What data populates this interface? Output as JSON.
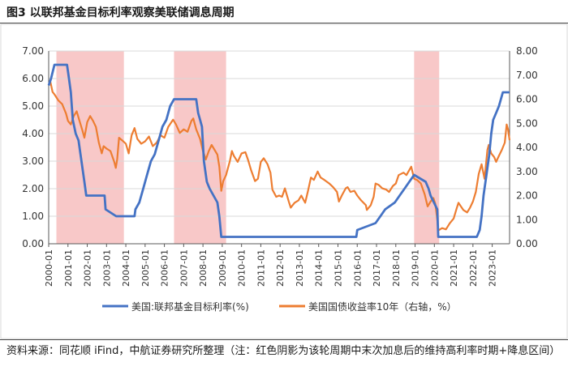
{
  "figure_title": "图3  以联邦基金目标利率观察美联储调息周期",
  "source_note": "资料来源：同花顺 iFind，中航证券研究所整理（注：红色阴影为该轮周期中末次加息后的维持高利率时期+降息区间）",
  "colors": {
    "fed": "#4472c4",
    "yield": "#ed7d31",
    "shade": "#f8c8c8",
    "axis": "#595959",
    "grid": "#d9d9d9"
  },
  "chart_data": {
    "type": "line",
    "x_range": [
      2000.0,
      2023.9
    ],
    "categories": [
      "2000-01",
      "2001-01",
      "2002-01",
      "2003-01",
      "2004-01",
      "2005-01",
      "2006-01",
      "2007-01",
      "2008-01",
      "2009-01",
      "2010-01",
      "2011-01",
      "2012-01",
      "2013-01",
      "2014-01",
      "2015-01",
      "2016-01",
      "2017-01",
      "2018-01",
      "2019-01",
      "2020-01",
      "2021-01",
      "2022-01",
      "2023-01"
    ],
    "y_left": {
      "range": [
        0,
        7
      ],
      "ticks": [
        "0.00",
        "1.00",
        "2.00",
        "3.00",
        "4.00",
        "5.00",
        "6.00",
        "7.00"
      ]
    },
    "y_right": {
      "range": [
        0,
        8
      ],
      "ticks": [
        "0.00",
        "1.00",
        "2.00",
        "3.00",
        "4.00",
        "5.00",
        "6.00",
        "7.00",
        "8.00"
      ]
    },
    "shaded_periods": [
      [
        2000.4,
        2003.9
      ],
      [
        2006.5,
        2009.2
      ],
      [
        2018.95,
        2020.25
      ]
    ],
    "series": [
      {
        "name": "美国:联邦基金目标利率(%)",
        "axis": "left",
        "points": [
          [
            2000.0,
            5.75
          ],
          [
            2000.12,
            6.0
          ],
          [
            2000.3,
            6.5
          ],
          [
            2000.95,
            6.5
          ],
          [
            2001.05,
            6.0
          ],
          [
            2001.15,
            5.5
          ],
          [
            2001.25,
            4.5
          ],
          [
            2001.4,
            4.0
          ],
          [
            2001.55,
            3.75
          ],
          [
            2001.7,
            3.0
          ],
          [
            2001.85,
            2.25
          ],
          [
            2001.95,
            1.75
          ],
          [
            2002.9,
            1.75
          ],
          [
            2002.95,
            1.25
          ],
          [
            2003.5,
            1.0
          ],
          [
            2004.45,
            1.0
          ],
          [
            2004.5,
            1.25
          ],
          [
            2004.7,
            1.5
          ],
          [
            2004.9,
            2.0
          ],
          [
            2005.1,
            2.5
          ],
          [
            2005.3,
            3.0
          ],
          [
            2005.5,
            3.25
          ],
          [
            2005.7,
            3.75
          ],
          [
            2005.9,
            4.25
          ],
          [
            2006.1,
            4.5
          ],
          [
            2006.3,
            5.0
          ],
          [
            2006.5,
            5.25
          ],
          [
            2007.65,
            5.25
          ],
          [
            2007.75,
            4.75
          ],
          [
            2007.85,
            4.5
          ],
          [
            2007.95,
            4.25
          ],
          [
            2008.05,
            3.0
          ],
          [
            2008.2,
            2.25
          ],
          [
            2008.35,
            2.0
          ],
          [
            2008.75,
            1.5
          ],
          [
            2008.85,
            1.0
          ],
          [
            2008.95,
            0.25
          ],
          [
            2015.95,
            0.25
          ],
          [
            2016.0,
            0.5
          ],
          [
            2016.95,
            0.75
          ],
          [
            2017.2,
            1.0
          ],
          [
            2017.45,
            1.25
          ],
          [
            2017.95,
            1.5
          ],
          [
            2018.2,
            1.75
          ],
          [
            2018.45,
            2.0
          ],
          [
            2018.7,
            2.25
          ],
          [
            2018.95,
            2.5
          ],
          [
            2019.55,
            2.25
          ],
          [
            2019.7,
            2.0
          ],
          [
            2019.8,
            1.75
          ],
          [
            2020.15,
            1.25
          ],
          [
            2020.2,
            0.25
          ],
          [
            2022.2,
            0.25
          ],
          [
            2022.35,
            0.5
          ],
          [
            2022.45,
            1.0
          ],
          [
            2022.55,
            1.75
          ],
          [
            2022.7,
            2.5
          ],
          [
            2022.85,
            3.25
          ],
          [
            2022.95,
            4.0
          ],
          [
            2023.05,
            4.5
          ],
          [
            2023.2,
            4.75
          ],
          [
            2023.35,
            5.0
          ],
          [
            2023.45,
            5.25
          ],
          [
            2023.55,
            5.5
          ],
          [
            2023.9,
            5.5
          ]
        ]
      },
      {
        "name": "美国国债收益率10年（右轴，%）",
        "axis": "right",
        "points": [
          [
            2000.0,
            6.6
          ],
          [
            2000.08,
            6.75
          ],
          [
            2000.2,
            6.3
          ],
          [
            2000.3,
            6.2
          ],
          [
            2000.5,
            5.95
          ],
          [
            2000.7,
            5.8
          ],
          [
            2000.9,
            5.4
          ],
          [
            2001.0,
            5.1
          ],
          [
            2001.15,
            4.95
          ],
          [
            2001.3,
            5.3
          ],
          [
            2001.45,
            5.5
          ],
          [
            2001.6,
            5.1
          ],
          [
            2001.75,
            4.7
          ],
          [
            2001.85,
            4.4
          ],
          [
            2002.0,
            5.05
          ],
          [
            2002.15,
            5.3
          ],
          [
            2002.3,
            5.1
          ],
          [
            2002.45,
            4.85
          ],
          [
            2002.6,
            4.2
          ],
          [
            2002.75,
            3.75
          ],
          [
            2002.85,
            4.05
          ],
          [
            2003.0,
            3.95
          ],
          [
            2003.2,
            3.85
          ],
          [
            2003.4,
            3.4
          ],
          [
            2003.48,
            3.15
          ],
          [
            2003.55,
            3.5
          ],
          [
            2003.65,
            4.4
          ],
          [
            2003.8,
            4.3
          ],
          [
            2004.0,
            4.15
          ],
          [
            2004.15,
            3.75
          ],
          [
            2004.3,
            4.5
          ],
          [
            2004.45,
            4.8
          ],
          [
            2004.6,
            4.35
          ],
          [
            2004.8,
            4.15
          ],
          [
            2005.0,
            4.25
          ],
          [
            2005.2,
            4.45
          ],
          [
            2005.4,
            4.05
          ],
          [
            2005.6,
            4.2
          ],
          [
            2005.8,
            4.5
          ],
          [
            2006.0,
            4.4
          ],
          [
            2006.2,
            4.85
          ],
          [
            2006.45,
            5.15
          ],
          [
            2006.6,
            4.95
          ],
          [
            2006.8,
            4.6
          ],
          [
            2007.0,
            4.75
          ],
          [
            2007.2,
            4.65
          ],
          [
            2007.4,
            5.1
          ],
          [
            2007.5,
            5.2
          ],
          [
            2007.65,
            4.75
          ],
          [
            2007.85,
            4.35
          ],
          [
            2008.0,
            3.85
          ],
          [
            2008.15,
            3.5
          ],
          [
            2008.3,
            3.85
          ],
          [
            2008.45,
            4.1
          ],
          [
            2008.6,
            3.9
          ],
          [
            2008.75,
            3.7
          ],
          [
            2008.85,
            3.2
          ],
          [
            2008.95,
            2.2
          ],
          [
            2009.05,
            2.6
          ],
          [
            2009.2,
            2.85
          ],
          [
            2009.4,
            3.45
          ],
          [
            2009.5,
            3.85
          ],
          [
            2009.6,
            3.65
          ],
          [
            2009.8,
            3.4
          ],
          [
            2010.0,
            3.75
          ],
          [
            2010.2,
            3.8
          ],
          [
            2010.35,
            3.45
          ],
          [
            2010.5,
            3.05
          ],
          [
            2010.7,
            2.6
          ],
          [
            2010.85,
            2.7
          ],
          [
            2011.0,
            3.4
          ],
          [
            2011.15,
            3.55
          ],
          [
            2011.35,
            3.3
          ],
          [
            2011.5,
            2.95
          ],
          [
            2011.6,
            2.25
          ],
          [
            2011.8,
            1.95
          ],
          [
            2011.95,
            2.0
          ],
          [
            2012.1,
            1.95
          ],
          [
            2012.25,
            2.3
          ],
          [
            2012.45,
            1.75
          ],
          [
            2012.55,
            1.5
          ],
          [
            2012.75,
            1.7
          ],
          [
            2012.95,
            1.8
          ],
          [
            2013.1,
            2.0
          ],
          [
            2013.3,
            1.7
          ],
          [
            2013.45,
            2.2
          ],
          [
            2013.6,
            2.75
          ],
          [
            2013.75,
            2.65
          ],
          [
            2013.95,
            3.0
          ],
          [
            2014.1,
            2.75
          ],
          [
            2014.3,
            2.65
          ],
          [
            2014.55,
            2.5
          ],
          [
            2014.75,
            2.35
          ],
          [
            2014.95,
            2.15
          ],
          [
            2015.05,
            1.75
          ],
          [
            2015.2,
            2.0
          ],
          [
            2015.4,
            2.3
          ],
          [
            2015.5,
            2.35
          ],
          [
            2015.65,
            2.15
          ],
          [
            2015.85,
            2.2
          ],
          [
            2016.0,
            2.0
          ],
          [
            2016.2,
            1.8
          ],
          [
            2016.45,
            1.6
          ],
          [
            2016.5,
            1.4
          ],
          [
            2016.7,
            1.6
          ],
          [
            2016.85,
            1.95
          ],
          [
            2016.95,
            2.5
          ],
          [
            2017.1,
            2.45
          ],
          [
            2017.3,
            2.3
          ],
          [
            2017.5,
            2.25
          ],
          [
            2017.65,
            2.15
          ],
          [
            2017.85,
            2.4
          ],
          [
            2018.0,
            2.5
          ],
          [
            2018.15,
            2.85
          ],
          [
            2018.4,
            2.95
          ],
          [
            2018.55,
            2.85
          ],
          [
            2018.8,
            3.2
          ],
          [
            2018.95,
            2.7
          ],
          [
            2019.1,
            2.65
          ],
          [
            2019.3,
            2.5
          ],
          [
            2019.5,
            2.05
          ],
          [
            2019.65,
            1.55
          ],
          [
            2019.8,
            1.75
          ],
          [
            2019.95,
            1.9
          ],
          [
            2020.05,
            1.65
          ],
          [
            2020.15,
            1.0
          ],
          [
            2020.2,
            0.55
          ],
          [
            2020.4,
            0.65
          ],
          [
            2020.6,
            0.6
          ],
          [
            2020.8,
            0.85
          ],
          [
            2021.0,
            1.05
          ],
          [
            2021.15,
            1.45
          ],
          [
            2021.25,
            1.7
          ],
          [
            2021.5,
            1.4
          ],
          [
            2021.7,
            1.3
          ],
          [
            2021.85,
            1.5
          ],
          [
            2022.0,
            1.75
          ],
          [
            2022.15,
            2.15
          ],
          [
            2022.3,
            2.9
          ],
          [
            2022.45,
            3.3
          ],
          [
            2022.6,
            2.7
          ],
          [
            2022.75,
            3.9
          ],
          [
            2022.82,
            4.1
          ],
          [
            2022.95,
            3.75
          ],
          [
            2023.1,
            3.6
          ],
          [
            2023.2,
            3.4
          ],
          [
            2023.35,
            3.65
          ],
          [
            2023.5,
            3.9
          ],
          [
            2023.65,
            4.2
          ],
          [
            2023.75,
            4.95
          ],
          [
            2023.82,
            4.75
          ],
          [
            2023.9,
            4.3
          ]
        ]
      }
    ],
    "legend_position": "bottom"
  }
}
